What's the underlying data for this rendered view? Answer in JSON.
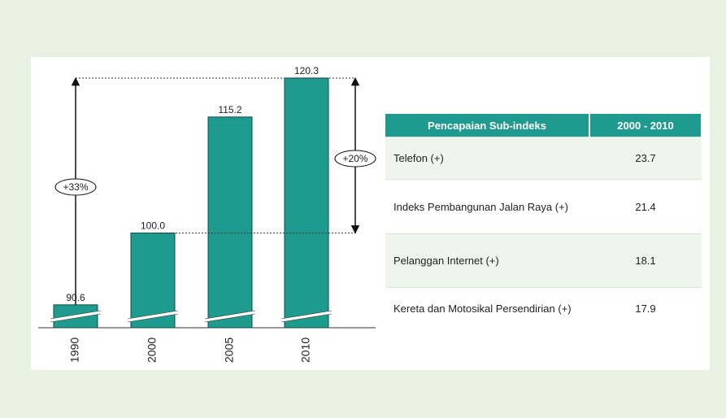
{
  "chart_data": {
    "type": "bar",
    "categories": [
      "1990",
      "2000",
      "2005",
      "2010"
    ],
    "values": [
      90.6,
      100.0,
      115.2,
      120.3
    ],
    "value_labels": [
      "90.6",
      "100.0",
      "115.2",
      "120.3"
    ],
    "annotations": [
      "+33%",
      "+20%"
    ],
    "color": "#1e9a8e",
    "ylim": [
      87.6,
      122
    ]
  },
  "table": {
    "header": [
      "Pencapaian Sub-indeks",
      "2000 - 2010"
    ],
    "rows": [
      [
        "Telefon (+)",
        "23.7"
      ],
      [
        "Indeks Pembangunan Jalan Raya (+)",
        "21.4"
      ],
      [
        "Pelanggan Internet (+)",
        "18.1"
      ],
      [
        "Kereta dan Motosikal Persendirian (+)",
        "17.9"
      ]
    ]
  }
}
